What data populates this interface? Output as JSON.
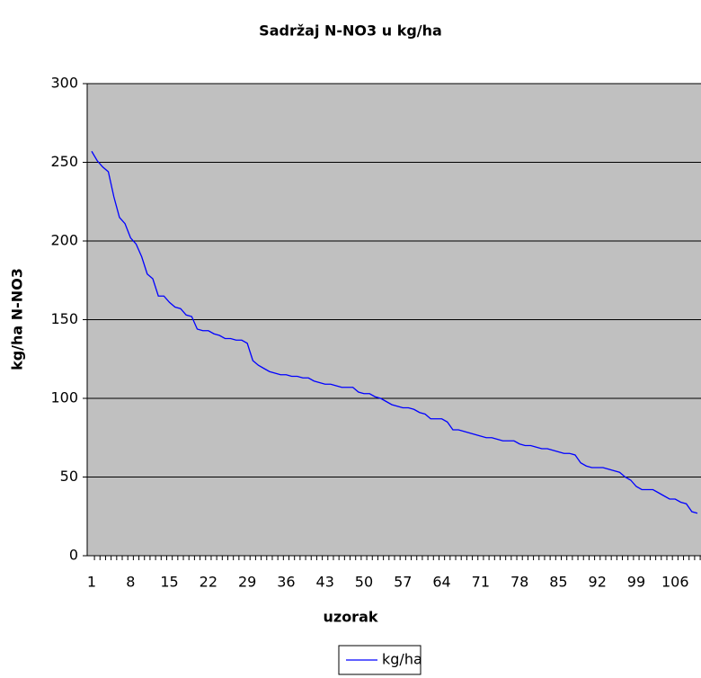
{
  "chart_data": {
    "type": "line",
    "title": "Sadržaj N-NO3 u kg/ha",
    "x_label": "uzorak",
    "y_label": "kg/ha N-NO3",
    "categories": [
      1,
      null,
      null,
      null,
      null,
      null,
      null,
      8,
      null,
      null,
      null,
      null,
      null,
      null,
      15,
      null,
      null,
      null,
      null,
      null,
      null,
      22,
      null,
      null,
      null,
      null,
      null,
      null,
      29,
      null,
      null,
      null,
      null,
      null,
      null,
      36,
      null,
      null,
      null,
      null,
      null,
      null,
      43,
      null,
      null,
      null,
      null,
      null,
      null,
      50,
      null,
      null,
      null,
      null,
      null,
      null,
      57,
      null,
      null,
      null,
      null,
      null,
      null,
      64,
      null,
      null,
      null,
      null,
      null,
      null,
      71,
      null,
      null,
      null,
      null,
      null,
      null,
      78,
      null,
      null,
      null,
      null,
      null,
      null,
      85,
      null,
      null,
      null,
      null,
      null,
      null,
      92,
      null,
      null,
      null,
      null,
      null,
      null,
      99,
      null,
      null,
      null,
      null,
      null,
      null,
      106,
      null,
      null,
      null,
      null
    ],
    "series": [
      {
        "name": "kg/ha",
        "color": "#0000ff",
        "values": [
          257,
          251,
          247,
          244,
          228,
          215,
          211,
          202,
          198,
          190,
          179,
          176,
          165,
          165,
          161,
          158,
          157,
          153,
          152,
          144,
          143,
          143,
          141,
          140,
          138,
          138,
          137,
          137,
          135,
          124,
          121,
          119,
          117,
          116,
          115,
          115,
          114,
          114,
          113,
          113,
          111,
          110,
          109,
          109,
          108,
          107,
          107,
          107,
          104,
          103,
          103,
          101,
          100,
          98,
          96,
          95,
          94,
          94,
          93,
          91,
          90,
          87,
          87,
          87,
          85,
          80,
          80,
          79,
          78,
          77,
          76,
          75,
          75,
          74,
          73,
          73,
          73,
          71,
          70,
          70,
          69,
          68,
          68,
          67,
          66,
          65,
          65,
          64,
          59,
          57,
          56,
          56,
          56,
          55,
          54,
          53,
          50,
          48,
          44,
          42,
          42,
          42,
          40,
          38,
          36,
          36,
          34,
          33,
          28,
          27
        ]
      }
    ],
    "ylim": [
      0,
      300
    ],
    "yticks": [
      0,
      50,
      100,
      150,
      200,
      250,
      300
    ],
    "grid": true,
    "legend": "bottom"
  }
}
